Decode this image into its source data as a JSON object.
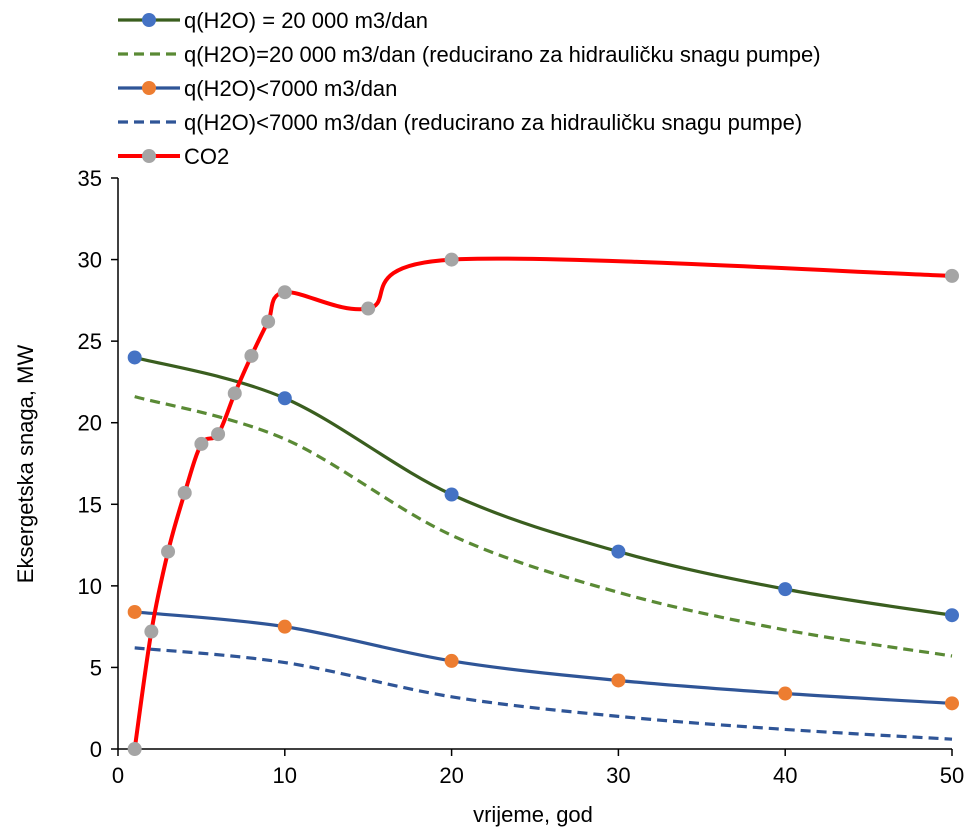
{
  "chart_data": {
    "type": "line",
    "title": "",
    "xlabel": "vrijeme, god",
    "ylabel": "Eksergetska snaga, MW",
    "xlim": [
      0,
      50
    ],
    "ylim": [
      0,
      35
    ],
    "xticks": [
      0,
      10,
      20,
      30,
      40,
      50
    ],
    "yticks": [
      0,
      5,
      10,
      15,
      20,
      25,
      30,
      35
    ],
    "grid": false,
    "legend_position": "top-left",
    "series": [
      {
        "name": "q(H2O) = 20 000 m3/dan",
        "color": "#3a5e1f",
        "marker_color": "#4472c4",
        "style": "solid",
        "markers": true,
        "x": [
          1,
          10,
          20,
          30,
          40,
          50
        ],
        "y": [
          24.0,
          21.5,
          15.6,
          12.1,
          9.8,
          8.2
        ]
      },
      {
        "name": "q(H2O)=20 000 m3/dan (reducirano za hidrauličku snagu pumpe)",
        "color": "#5a8a35",
        "style": "dashed",
        "markers": false,
        "x": [
          1,
          10,
          20,
          30,
          40,
          50
        ],
        "y": [
          21.6,
          19.0,
          13.1,
          9.6,
          7.3,
          5.7
        ]
      },
      {
        "name": "q(H2O)<7000 m3/dan",
        "color": "#2f5597",
        "marker_color": "#ed7d31",
        "style": "solid",
        "markers": true,
        "x": [
          1,
          10,
          20,
          30,
          40,
          50
        ],
        "y": [
          8.4,
          7.5,
          5.4,
          4.2,
          3.4,
          2.8
        ]
      },
      {
        "name": "q(H2O)<7000 m3/dan (reducirano za hidrauličku snagu pumpe)",
        "color": "#2f5597",
        "style": "dashed",
        "markers": false,
        "x": [
          1,
          10,
          20,
          30,
          40,
          50
        ],
        "y": [
          6.2,
          5.3,
          3.2,
          2.0,
          1.2,
          0.6
        ]
      },
      {
        "name": "CO2",
        "color": "#ff0000",
        "marker_color": "#a5a5a5",
        "style": "solid",
        "markers": true,
        "x": [
          1,
          2,
          3,
          4,
          5,
          6,
          7,
          8,
          9,
          10,
          15,
          20,
          50
        ],
        "y": [
          0,
          7.2,
          12.1,
          15.7,
          18.7,
          19.3,
          21.8,
          24.1,
          26.2,
          28.0,
          27.0,
          30.0,
          29.0
        ]
      }
    ]
  }
}
